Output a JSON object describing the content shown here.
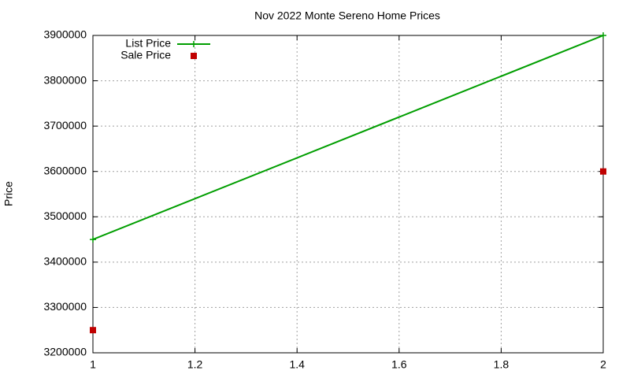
{
  "chart_data": {
    "type": "line",
    "title": "Nov 2022 Monte Sereno Home Prices",
    "y_label": "Price",
    "x": [
      1,
      2
    ],
    "series": [
      {
        "name": "List Price",
        "color": "#009e00",
        "style": "linespoints",
        "values": [
          3450000,
          3900000
        ]
      },
      {
        "name": "Sale Price",
        "color": "#c00000",
        "style": "points",
        "values": [
          3250000,
          3600000
        ]
      }
    ],
    "xlim": [
      1,
      2
    ],
    "xticks": [
      1,
      1.2,
      1.4,
      1.6,
      1.8,
      2
    ],
    "ylim": [
      3200000,
      3900000
    ],
    "yticks": [
      3200000,
      3300000,
      3400000,
      3500000,
      3600000,
      3700000,
      3800000,
      3900000
    ],
    "grid": true,
    "legend": "top-left"
  }
}
